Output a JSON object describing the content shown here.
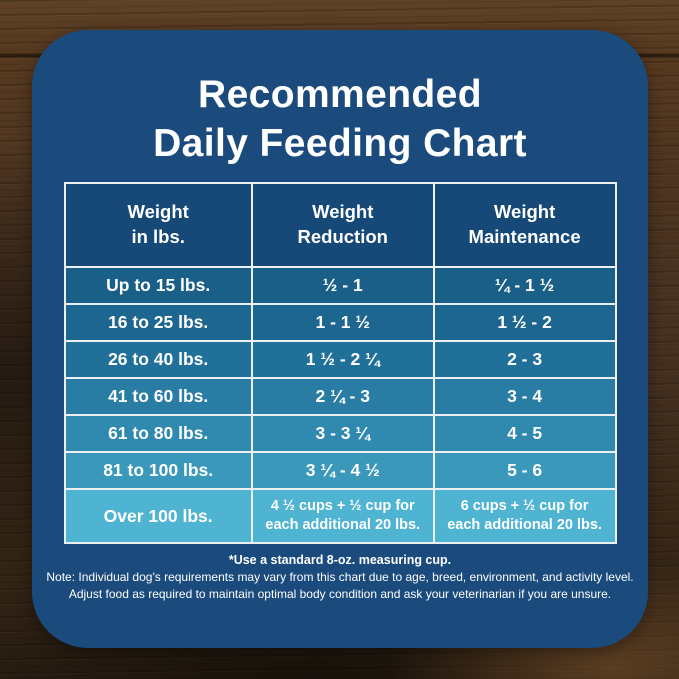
{
  "title": {
    "line1": "Recommended",
    "line2": "Daily Feeding Chart"
  },
  "table": {
    "headers": [
      {
        "line1": "Weight",
        "line2": "in lbs."
      },
      {
        "line1": "Weight",
        "line2": "Reduction"
      },
      {
        "line1": "Weight",
        "line2": "Maintenance"
      }
    ],
    "rows": [
      {
        "weight": "Up to 15 lbs.",
        "reduction": "½ - 1",
        "maintenance": "¼ - 1 ½"
      },
      {
        "weight": "16 to 25 lbs.",
        "reduction": "1 - 1 ½",
        "maintenance": "1 ½ - 2"
      },
      {
        "weight": "26 to 40 lbs.",
        "reduction": "1 ½ - 2 ¼",
        "maintenance": "2 - 3"
      },
      {
        "weight": "41 to 60 lbs.",
        "reduction": "2 ¼ - 3",
        "maintenance": "3 - 4"
      },
      {
        "weight": "61 to 80 lbs.",
        "reduction": "3 - 3 ¼",
        "maintenance": "4 - 5"
      },
      {
        "weight": "81 to 100 lbs.",
        "reduction": "3 ¼ - 4 ½",
        "maintenance": "5 - 6"
      },
      {
        "weight": "Over 100 lbs.",
        "reduction": "4 ½ cups + ½ cup for each additional 20 lbs.",
        "maintenance": "6 cups + ½ cup for each additional 20 lbs."
      }
    ],
    "row_colors": [
      "#1a5f87",
      "#1d668f",
      "#217099",
      "#297ca4",
      "#3089af",
      "#3a98bb",
      "#4fb4d2"
    ]
  },
  "footer": {
    "footnote": "*Use a standard 8-oz. measuring cup.",
    "note_line1": "Note: Individual dog's requirements may vary from this chart due to age, breed, environment, and activity level.",
    "note_line2": "Adjust food as required to maintain optimal body condition and ask your veterinarian if you are unsure."
  },
  "colors": {
    "card": "#1b4b7d",
    "header_cell": "#164878",
    "grid_line": "#edf0f2",
    "text": "#ffffff",
    "wood_base": "#4c3420"
  },
  "chart_data": {
    "type": "table",
    "title": "Recommended Daily Feeding Chart",
    "columns": [
      "Weight in lbs.",
      "Weight Reduction",
      "Weight Maintenance"
    ],
    "rows": [
      [
        "Up to 15 lbs.",
        "½ - 1",
        "¼ - 1 ½"
      ],
      [
        "16 to 25 lbs.",
        "1 - 1 ½",
        "1 ½ - 2"
      ],
      [
        "26 to 40 lbs.",
        "1 ½ - 2 ¼",
        "2 - 3"
      ],
      [
        "41 to 60 lbs.",
        "2 ¼ - 3",
        "3 - 4"
      ],
      [
        "61 to 80 lbs.",
        "3 - 3 ¼",
        "4 - 5"
      ],
      [
        "81 to 100 lbs.",
        "3 ¼ - 4 ½",
        "5 - 6"
      ],
      [
        "Over 100 lbs.",
        "4 ½ cups + ½ cup for each additional 20 lbs.",
        "6 cups + ½ cup for each additional 20 lbs."
      ]
    ],
    "notes": [
      "*Use a standard 8-oz. measuring cup.",
      "Note: Individual dog's requirements may vary from this chart due to age, breed, environment, and activity level. Adjust food as required to maintain optimal body condition and ask your veterinarian if you are unsure."
    ]
  }
}
